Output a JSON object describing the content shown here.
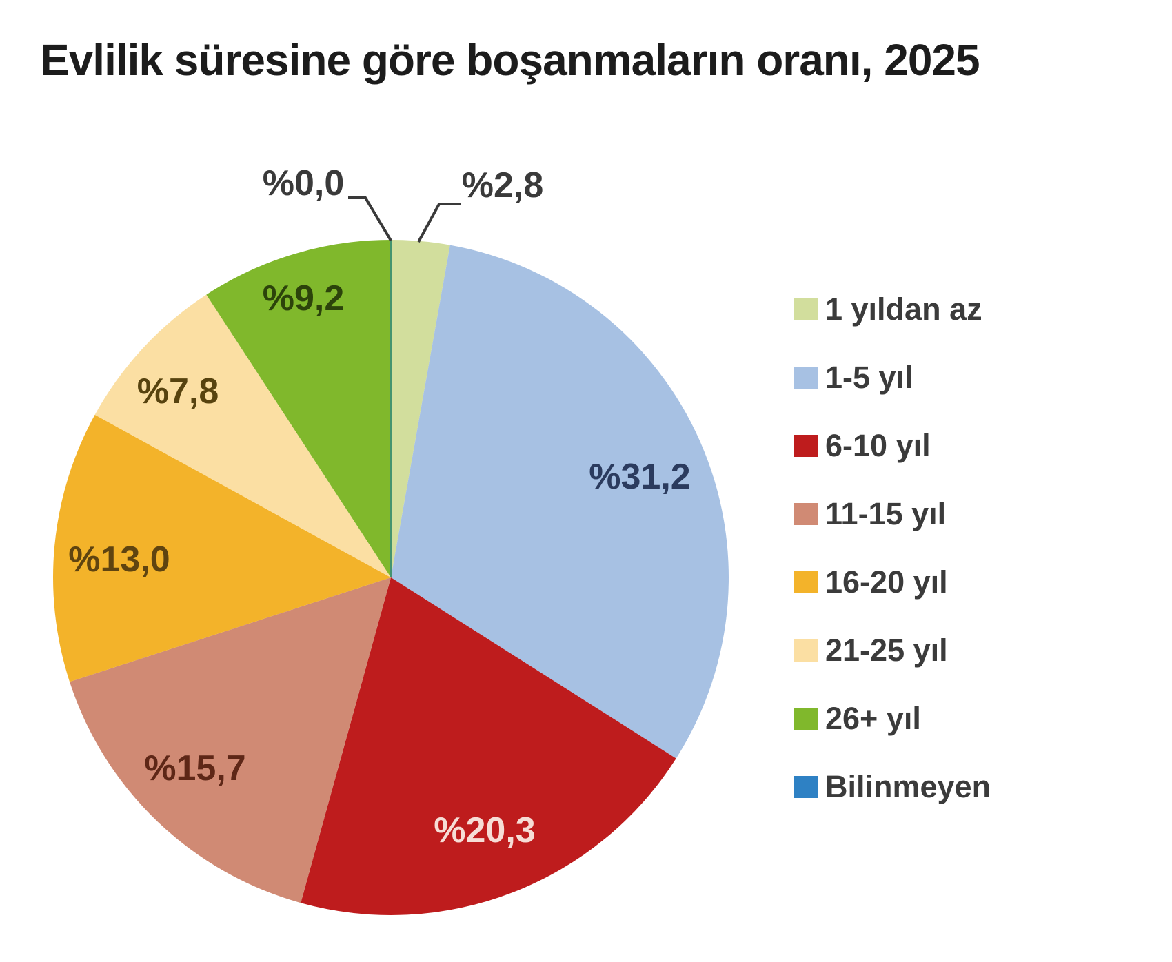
{
  "chart_data": {
    "type": "pie",
    "title": "Evlilik süresine göre boşanmaların oranı, 2025",
    "unit": "percent",
    "start_angle_deg": 0,
    "direction": "clockwise",
    "legend_position": "right",
    "slices": [
      {
        "label": "1 yıldan az",
        "value": 2.8,
        "display": "%2,8",
        "color": "#d2de9d",
        "label_color": "#3a3a3a",
        "label_placement": "outside"
      },
      {
        "label": "1-5 yıl",
        "value": 31.2,
        "display": "%31,2",
        "color": "#a7c1e3",
        "label_color": "#2b3b5e",
        "label_placement": "inside"
      },
      {
        "label": "6-10 yıl",
        "value": 20.3,
        "display": "%20,3",
        "color": "#be1c1d",
        "label_color": "#f6ddd6",
        "label_placement": "inside"
      },
      {
        "label": "11-15 yıl",
        "value": 15.7,
        "display": "%15,7",
        "color": "#d08a74",
        "label_color": "#5e2717",
        "label_placement": "inside"
      },
      {
        "label": "16-20 yıl",
        "value": 13.0,
        "display": "%13,0",
        "color": "#f3b32a",
        "label_color": "#5f4410",
        "label_placement": "inside"
      },
      {
        "label": "21-25 yıl",
        "value": 7.8,
        "display": "%7,8",
        "color": "#fbdfa3",
        "label_color": "#57430f",
        "label_placement": "inside"
      },
      {
        "label": "26+ yıl",
        "value": 9.2,
        "display": "%9,2",
        "color": "#80b82c",
        "label_color": "#2c430b",
        "label_placement": "inside"
      },
      {
        "label": "Bilinmeyen",
        "value": 0.0,
        "display": "%0,0",
        "color": "#2e81c4",
        "label_color": "#3a3a3a",
        "label_placement": "outside"
      }
    ],
    "leader_line_color": "#3a3a3a",
    "zero_slice_hairline_color": "#44946f"
  }
}
